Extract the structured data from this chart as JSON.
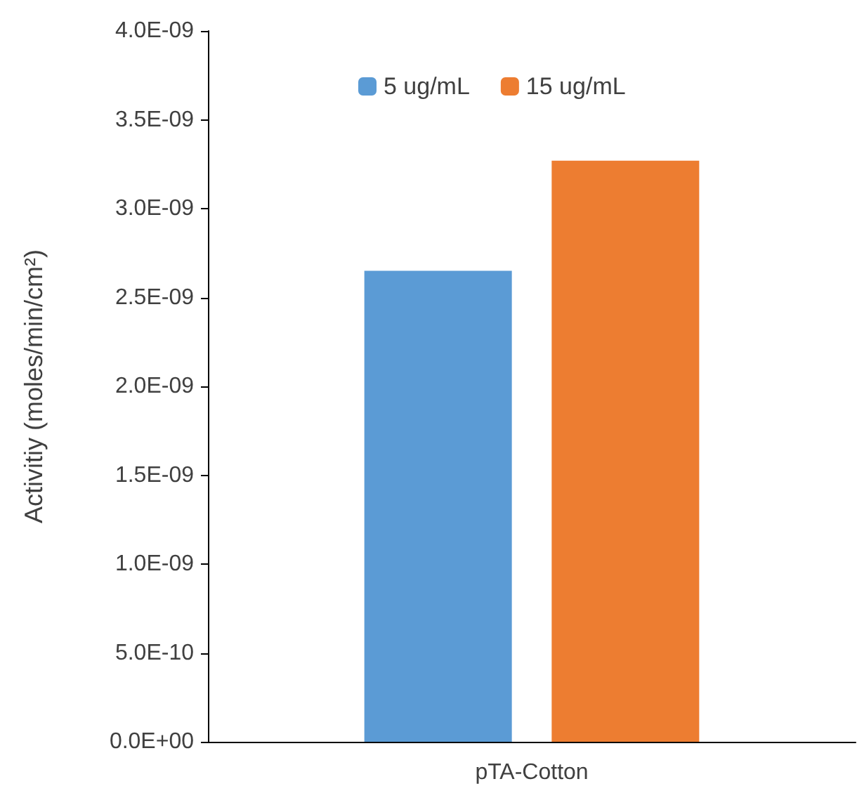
{
  "chart_data": {
    "type": "bar",
    "ylabel": "Activitiy (moles/min/cm²)",
    "categories": [
      "pTA-Cotton"
    ],
    "series": [
      {
        "name": "5 ug/mL",
        "color": "#5b9bd5",
        "values": [
          2.65e-09
        ]
      },
      {
        "name": "15 ug/mL",
        "color": "#ed7d31",
        "values": [
          3.27e-09
        ]
      }
    ],
    "ylim": [
      0,
      4e-09
    ],
    "yticks": [
      {
        "value": 0,
        "label": "0.0E+00"
      },
      {
        "value": 5e-10,
        "label": "5.0E-10"
      },
      {
        "value": 1e-09,
        "label": "1.0E-09"
      },
      {
        "value": 1.5e-09,
        "label": "1.5E-09"
      },
      {
        "value": 2e-09,
        "label": "2.0E-09"
      },
      {
        "value": 2.5e-09,
        "label": "2.5E-09"
      },
      {
        "value": 3e-09,
        "label": "3.0E-09"
      },
      {
        "value": 3.5e-09,
        "label": "3.5E-09"
      },
      {
        "value": 4e-09,
        "label": "4.0E-09"
      }
    ],
    "grid": false,
    "legend": "top"
  }
}
